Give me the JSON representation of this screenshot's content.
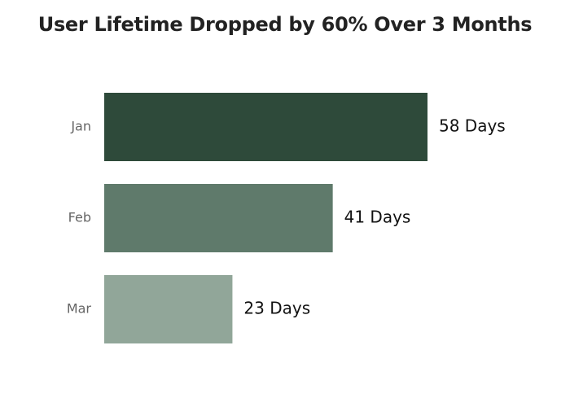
{
  "chart_data": {
    "type": "bar",
    "orientation": "horizontal",
    "title": "User Lifetime Dropped by 60% Over 3 Months",
    "categories": [
      "Jan",
      "Feb",
      "Mar"
    ],
    "values": [
      58,
      41,
      23
    ],
    "data_labels": [
      "58 Days",
      "41 Days",
      "23 Days"
    ],
    "colors": [
      "#2e4a3a",
      "#5f7a6b",
      "#91a699"
    ],
    "xlim": [
      0,
      58
    ],
    "grid": false,
    "legend": "none"
  }
}
